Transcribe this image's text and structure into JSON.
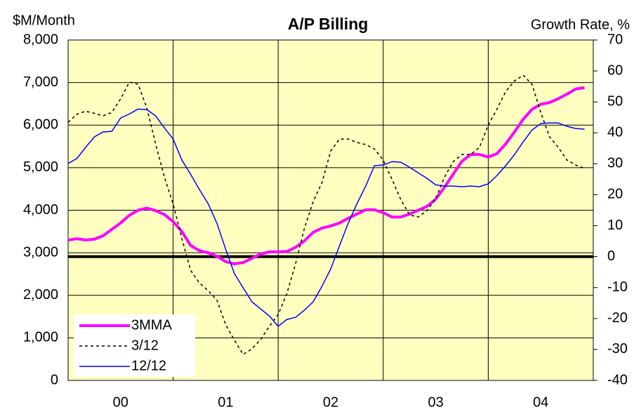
{
  "chart_data": {
    "type": "line",
    "title": "A/P Billing",
    "y_label": "$M/Month",
    "y2_label": "Growth Rate, %",
    "x": [
      0,
      1,
      2,
      3,
      4,
      5,
      6,
      7,
      8,
      9,
      10,
      11,
      12,
      13,
      14,
      15,
      16,
      17,
      18,
      19,
      20,
      21,
      22,
      23,
      24,
      25,
      26,
      27,
      28,
      29,
      30,
      31,
      32,
      33,
      34,
      35,
      36,
      37,
      38,
      39,
      40,
      41,
      42,
      43,
      44,
      45,
      46,
      47,
      48,
      49,
      50,
      51,
      52,
      53,
      54,
      55,
      56,
      57,
      58,
      59
    ],
    "xlim": [
      0,
      60
    ],
    "xticks": [
      {
        "value": 6,
        "label": "00"
      },
      {
        "value": 18,
        "label": "01"
      },
      {
        "value": 30,
        "label": "02"
      },
      {
        "value": 42,
        "label": "03"
      },
      {
        "value": 54,
        "label": "04"
      }
    ],
    "xgrid": [
      12,
      24,
      36,
      48
    ],
    "ylim": [
      0,
      8000
    ],
    "yticks": [
      0,
      {
        "value": 1000,
        "label": "1,000"
      },
      {
        "value": 2000,
        "label": "2,000"
      },
      {
        "value": 3000,
        "label": "3,000"
      },
      {
        "value": 4000,
        "label": "4,000"
      },
      {
        "value": 5000,
        "label": "5,000"
      },
      {
        "value": 6000,
        "label": "6,000"
      },
      {
        "value": 7000,
        "label": "7,000"
      },
      {
        "value": 8000,
        "label": "8,000"
      }
    ],
    "y2lim": [
      -40,
      70
    ],
    "y2ticks": [
      -40,
      -30,
      -20,
      -10,
      0,
      10,
      20,
      30,
      40,
      50,
      60,
      70
    ],
    "y2_zero_line": true,
    "grid": true,
    "legend": "lower left",
    "series": [
      {
        "name": "3MMA",
        "color": "#ff00ff",
        "width": 4,
        "dash": false,
        "axis": "y",
        "values": [
          3300,
          3330,
          3300,
          3320,
          3400,
          3550,
          3700,
          3880,
          4000,
          4050,
          3990,
          3900,
          3730,
          3500,
          3170,
          3050,
          3000,
          2920,
          2790,
          2740,
          2770,
          2870,
          2970,
          3020,
          3020,
          3030,
          3130,
          3280,
          3480,
          3580,
          3630,
          3700,
          3810,
          3910,
          4010,
          4010,
          3940,
          3840,
          3840,
          3910,
          4000,
          4090,
          4260,
          4540,
          4850,
          5150,
          5310,
          5310,
          5250,
          5330,
          5560,
          5840,
          6140,
          6370,
          6490,
          6530,
          6620,
          6730,
          6850,
          6880
        ]
      },
      {
        "name": "3/12",
        "color": "#000000",
        "width": 1.5,
        "dash": true,
        "axis": "y2",
        "values": [
          43.4,
          46,
          47,
          46.3,
          45.5,
          46.6,
          51,
          56.4,
          55.7,
          48,
          36.4,
          25.7,
          17,
          5.8,
          -4.4,
          -8.5,
          -11,
          -14,
          -22,
          -27,
          -31.6,
          -29.8,
          -26.8,
          -22.5,
          -18.7,
          -11.9,
          -2.1,
          9.2,
          17.8,
          23.9,
          34.1,
          38,
          38,
          36.9,
          36.2,
          34.8,
          31.2,
          25,
          18.5,
          13.5,
          12.8,
          14.9,
          18.7,
          25.7,
          30.7,
          33,
          33,
          35.3,
          42.5,
          47.7,
          53.4,
          56.8,
          58.6,
          55.7,
          46.6,
          38.7,
          35.3,
          31.2,
          29.6,
          28.5
        ]
      },
      {
        "name": "12/12",
        "color": "#0000ff",
        "width": 1.5,
        "dash": false,
        "axis": "y2",
        "values": [
          30.1,
          31.7,
          35.3,
          38.7,
          40.3,
          40.5,
          44.8,
          46.1,
          47.7,
          47.5,
          45.5,
          41.6,
          38,
          31.2,
          26.6,
          21.7,
          17.1,
          10.8,
          2.4,
          -5.5,
          -10.1,
          -14.6,
          -16.9,
          -19.2,
          -22.5,
          -20.3,
          -19.6,
          -17.3,
          -14.6,
          -9.6,
          -4,
          3.5,
          10.8,
          17.1,
          22.8,
          29.4,
          29.6,
          30.7,
          30.5,
          28.9,
          27.1,
          25.3,
          23.2,
          22.8,
          22.8,
          22.6,
          22.8,
          22.6,
          23.5,
          26.2,
          29.4,
          33,
          37.1,
          40.9,
          43,
          43.2,
          43.2,
          42.1,
          41.4,
          41.2
        ]
      }
    ]
  }
}
